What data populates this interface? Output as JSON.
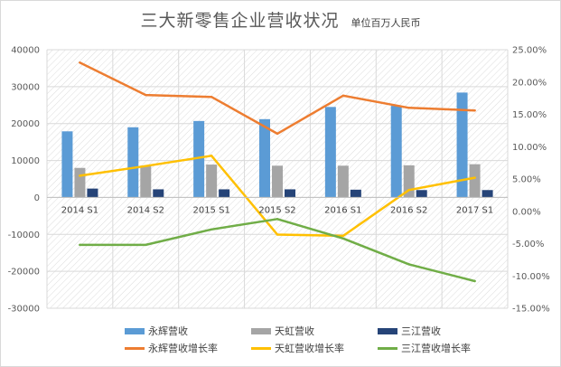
{
  "chart_data": {
    "type": "bar",
    "title": "三大新零售企业营收状况",
    "subtitle": "单位百万人民币",
    "categories": [
      "2014 S1",
      "2014 S2",
      "2015 S1",
      "2015 S2",
      "2016 S1",
      "2016 S2",
      "2017 S1"
    ],
    "y_left": {
      "ylim": [
        -30000,
        40000
      ],
      "ticks": [
        "-30000",
        "-20000",
        "-10000",
        "0",
        "10000",
        "20000",
        "30000",
        "40000"
      ]
    },
    "y_right": {
      "ylim": [
        -15,
        25
      ],
      "ticks": [
        "-15.00%",
        "-10.00%",
        "-5.00%",
        "0.00%",
        "5.00%",
        "10.00%",
        "15.00%",
        "20.00%",
        "25.00%"
      ]
    },
    "series": [
      {
        "name": "永辉营收",
        "kind": "bar",
        "axis": "left",
        "color": "#5b9bd5",
        "values": [
          17900,
          19000,
          20700,
          21200,
          24500,
          24800,
          28400
        ]
      },
      {
        "name": "天虹营收",
        "kind": "bar",
        "axis": "left",
        "color": "#a5a5a5",
        "values": [
          8000,
          8600,
          8900,
          8600,
          8600,
          8700,
          9000
        ]
      },
      {
        "name": "三江营收",
        "kind": "bar",
        "axis": "left",
        "color": "#264478",
        "values": [
          2400,
          2200,
          2200,
          2200,
          2100,
          2000,
          2000
        ]
      },
      {
        "name": "永辉营收增长率",
        "kind": "line",
        "axis": "right",
        "color": "#ed7d31",
        "values": [
          23.0,
          18.0,
          17.7,
          12.0,
          17.9,
          16.0,
          15.6
        ]
      },
      {
        "name": "天虹营收增长率",
        "kind": "line",
        "axis": "right",
        "color": "#ffc000",
        "values": [
          5.5,
          7.0,
          8.6,
          -3.6,
          -3.8,
          3.3,
          5.2
        ]
      },
      {
        "name": "三江营收增长率",
        "kind": "line",
        "axis": "right",
        "color": "#70ad47",
        "values": [
          -5.2,
          -5.2,
          -2.8,
          -1.2,
          -4.2,
          -8.2,
          -10.8
        ]
      }
    ],
    "grid": true,
    "legend": "bottom"
  }
}
